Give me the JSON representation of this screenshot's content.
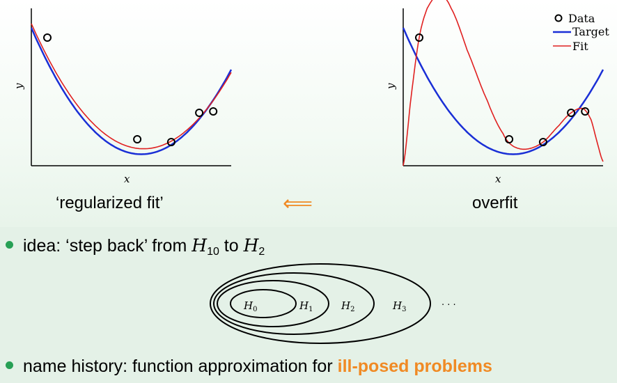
{
  "chart_data": [
    {
      "type": "scatter",
      "title": "",
      "xlabel": "x",
      "ylabel": "y",
      "caption": "‘regularized fit’",
      "points": [
        [
          0.08,
          0.87
        ],
        [
          0.53,
          0.14
        ],
        [
          0.7,
          0.12
        ],
        [
          0.84,
          0.33
        ],
        [
          0.91,
          0.34
        ]
      ],
      "series": [
        {
          "name": "Target",
          "color": "#1a2fd6",
          "kind": "line",
          "poly": [
            0.94,
            -3.3,
            3.0
          ]
        },
        {
          "name": "Fit",
          "color": "#e02020",
          "kind": "line",
          "poly": [
            0.97,
            -3.2,
            2.85
          ]
        }
      ],
      "xlim": [
        0,
        1
      ],
      "ylim": [
        0,
        1
      ]
    },
    {
      "type": "scatter",
      "title": "",
      "xlabel": "x",
      "ylabel": "y",
      "caption": "overfit",
      "legend": [
        "Data",
        "Target",
        "Fit"
      ],
      "points": [
        [
          0.08,
          0.87
        ],
        [
          0.53,
          0.14
        ],
        [
          0.7,
          0.12
        ],
        [
          0.84,
          0.33
        ],
        [
          0.91,
          0.34
        ]
      ],
      "series": [
        {
          "name": "Target",
          "color": "#1a2fd6",
          "kind": "line",
          "poly": [
            0.94,
            -3.3,
            3.0
          ]
        },
        {
          "name": "Fit",
          "color": "#e02020",
          "kind": "overfit"
        }
      ],
      "xlim": [
        0,
        1
      ],
      "ylim": [
        0,
        1
      ]
    }
  ],
  "arrow": "⟸",
  "bullets": {
    "idea_prefix": "idea: ‘step back’ from ",
    "h10_sym": "H",
    "h10_sub": "10",
    "idea_mid": " to ",
    "h2_sym": "H",
    "h2_sub": "2",
    "history_prefix": "name history: function approximation for ",
    "history_highlight": "ill-posed problems"
  },
  "nested_sets": {
    "labels": [
      {
        "sym": "H",
        "sub": "0"
      },
      {
        "sym": "H",
        "sub": "1"
      },
      {
        "sym": "H",
        "sub": "2"
      },
      {
        "sym": "H",
        "sub": "3"
      }
    ],
    "ellipsis": "· · ·"
  },
  "colors": {
    "target": "#1a2fd6",
    "fit": "#e02020",
    "accent": "#f08a24",
    "bullet": "#27a055"
  }
}
